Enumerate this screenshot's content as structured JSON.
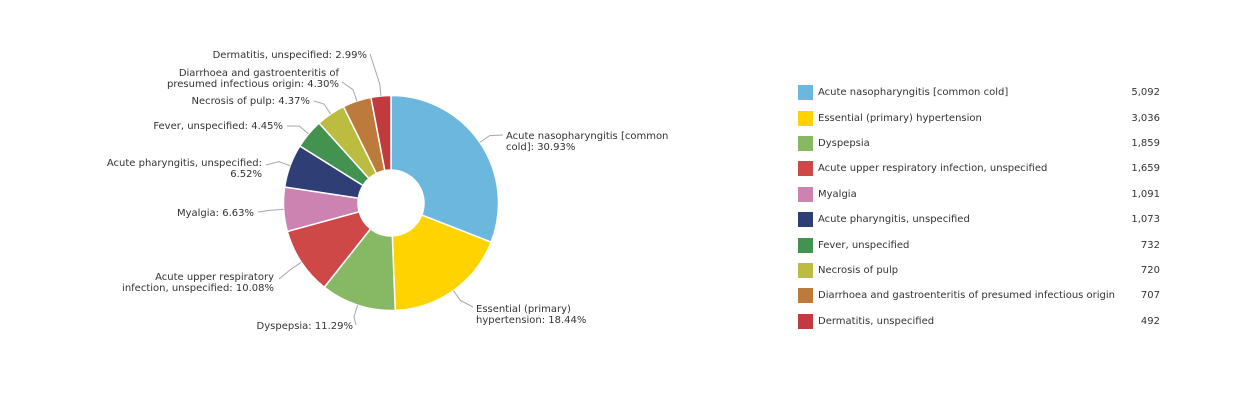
{
  "chart_data": {
    "type": "pie",
    "donut": true,
    "slices": [
      {
        "name": "Acute nasopharyngitis [common cold]",
        "percent": 30.93,
        "count": "5,092",
        "color": "#6BB7DE",
        "label": [
          "Acute nasopharyngitis [common",
          "cold]: 30.93%"
        ]
      },
      {
        "name": "Essential (primary) hypertension",
        "percent": 18.44,
        "count": "3,036",
        "color": "#FFD300",
        "label": [
          "Essential (primary)",
          "hypertension: 18.44%"
        ]
      },
      {
        "name": "Dyspepsia",
        "percent": 11.29,
        "count": "1,859",
        "color": "#87B965",
        "label": [
          "Dyspepsia: 11.29%"
        ]
      },
      {
        "name": "Acute upper respiratory infection, unspecified",
        "percent": 10.08,
        "count": "1,659",
        "color": "#CE4848",
        "label": [
          "Acute upper respiratory",
          "infection, unspecified: 10.08%"
        ]
      },
      {
        "name": "Myalgia",
        "percent": 6.63,
        "count": "1,091",
        "color": "#CC83B1",
        "label": [
          "Myalgia: 6.63%"
        ]
      },
      {
        "name": "Acute pharyngitis, unspecified",
        "percent": 6.52,
        "count": "1,073",
        "color": "#2F3E74",
        "label": [
          "Acute pharyngitis, unspecified:",
          "6.52%"
        ]
      },
      {
        "name": "Fever, unspecified",
        "percent": 4.45,
        "count": "732",
        "color": "#439250",
        "label": [
          "Fever, unspecified: 4.45%"
        ]
      },
      {
        "name": "Necrosis of pulp",
        "percent": 4.37,
        "count": "720",
        "color": "#BCBC40",
        "label": [
          "Necrosis of pulp: 4.37%"
        ]
      },
      {
        "name": "Diarrhoea and gastroenteritis of presumed infectious origin",
        "percent": 4.3,
        "count": "707",
        "color": "#BC7B3D",
        "label": [
          "Diarrhoea and gastroenteritis of",
          "presumed infectious origin: 4.30%"
        ]
      },
      {
        "name": "Dermatitis, unspecified",
        "percent": 2.99,
        "count": "492",
        "color": "#C13B3E",
        "label": [
          "Dermatitis, unspecified: 2.99%"
        ]
      }
    ]
  }
}
